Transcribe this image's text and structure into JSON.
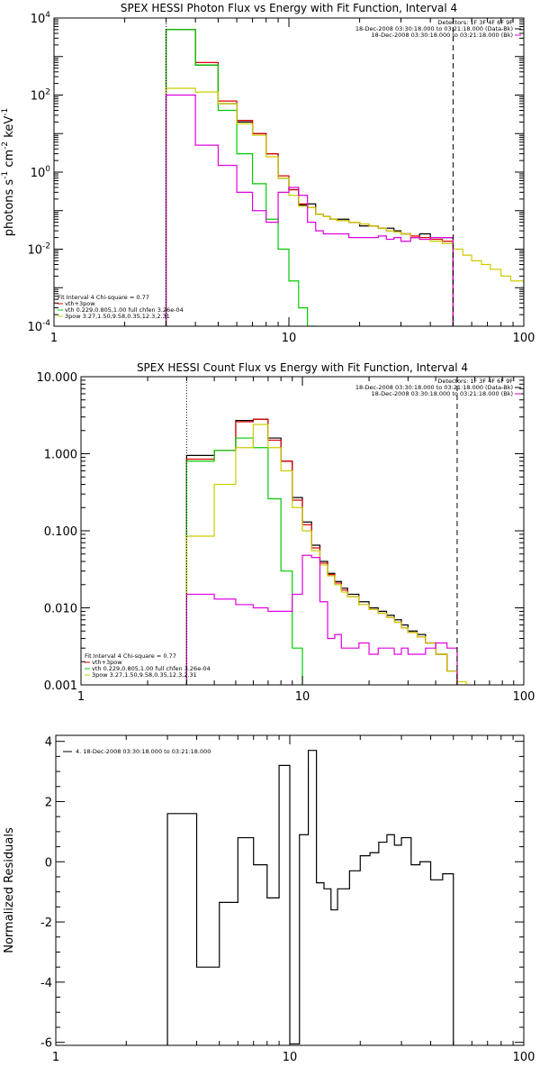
{
  "chart_data": [
    {
      "type": "line",
      "title": "SPEX HESSI Photon Flux vs Energy with Fit Function, Interval 4",
      "xlabel": "",
      "ylabel": "photons s",
      "ylabel_parts": [
        "-1",
        " cm",
        "-2",
        " keV",
        "-1"
      ],
      "xscale": "log",
      "yscale": "log",
      "xlim": [
        1,
        100
      ],
      "ylim": [
        0.0001,
        10000
      ],
      "xticks": [
        "1",
        "10",
        "100"
      ],
      "yticks": [
        {
          "base": "10",
          "exp": "4",
          "v": 10000
        },
        {
          "base": "10",
          "exp": "2",
          "v": 100
        },
        {
          "base": "10",
          "exp": "0",
          "v": 1
        },
        {
          "base": "10",
          "exp": "-2",
          "v": 0.01
        },
        {
          "base": "10",
          "exp": "-4",
          "v": 0.0001
        }
      ],
      "vlines": [
        {
          "x": 3,
          "style": "dotted",
          "color": "#000000"
        },
        {
          "x": 50,
          "style": "dashed",
          "color": "#000000"
        }
      ],
      "legend_top": [
        "Detectors: 1F 3F 4F 6F 9F",
        "18-Dec-2008 03:30:18.000 to 03:21:18.000 (Data-Bk)",
        "18-Dec-2008 03:30:18.000 to 03:21:18.000 (Bk)"
      ],
      "legend_top_colors": [
        "",
        "#000000",
        "#e000e0"
      ],
      "legend_bottom": [
        "Fit Interval  4    Chi-square = 0.77",
        "vth+3pow",
        "vth 0.229,0.805,1.00  full chfen 3.26e-04",
        "3pow  3.27,1.50,9.58,0.35,12.3,2.31"
      ],
      "legend_bottom_colors": [
        "",
        "#dd0000",
        "#00cc00",
        "#cccc00"
      ],
      "series": [
        {
          "color": "#000000",
          "edges": [
            3,
            4,
            5,
            6,
            7,
            8,
            9,
            10,
            11,
            12,
            13,
            14,
            15,
            16,
            18,
            20,
            22,
            24,
            26,
            28,
            30,
            33,
            36,
            40,
            45,
            50
          ],
          "values": [
            5000,
            600,
            60,
            20,
            10,
            3,
            0.7,
            0.35,
            0.14,
            0.15,
            0.08,
            0.07,
            0.06,
            0.06,
            0.05,
            0.04,
            0.04,
            0.035,
            0.035,
            0.03,
            0.025,
            0.02,
            0.025,
            0.02,
            0.02
          ]
        },
        {
          "color": "#dd0000",
          "edges": [
            3,
            4,
            5,
            6,
            7,
            8,
            9,
            10,
            11,
            12,
            13,
            14,
            15,
            16,
            18,
            20,
            22,
            24,
            26,
            28,
            30,
            33,
            36,
            40,
            45,
            50
          ],
          "values": [
            5000,
            700,
            70,
            22,
            10,
            3,
            0.8,
            0.35,
            0.15,
            0.12,
            0.08,
            0.07,
            0.06,
            0.055,
            0.05,
            0.045,
            0.04,
            0.035,
            0.03,
            0.028,
            0.025,
            0.022,
            0.02,
            0.018,
            0.016
          ]
        },
        {
          "color": "#00cc00",
          "edges": [
            3,
            4,
            5,
            6,
            7,
            8,
            9,
            10,
            11,
            12,
            13
          ],
          "values": [
            5000,
            600,
            40,
            3,
            0.5,
            0.06,
            0.01,
            0.0015,
            0.0003,
            0.0001
          ]
        },
        {
          "color": "#cccc00",
          "edges": [
            3,
            4,
            5,
            6,
            7,
            8,
            9,
            10,
            11,
            12,
            13,
            14,
            15,
            16,
            18,
            20,
            22,
            24,
            26,
            28,
            30,
            33,
            36,
            40,
            45,
            50,
            55,
            60,
            66,
            72,
            80,
            88,
            100
          ],
          "values": [
            150,
            120,
            60,
            18,
            9,
            2.5,
            0.7,
            0.25,
            0.13,
            0.12,
            0.08,
            0.07,
            0.06,
            0.055,
            0.05,
            0.045,
            0.04,
            0.035,
            0.03,
            0.028,
            0.025,
            0.02,
            0.018,
            0.016,
            0.014,
            0.01,
            0.007,
            0.005,
            0.004,
            0.003,
            0.002,
            0.0015
          ]
        },
        {
          "color": "#e000e0",
          "edges": [
            3,
            4,
            5,
            6,
            7,
            8,
            9,
            10,
            11,
            12,
            13,
            14,
            15,
            16,
            18,
            20,
            22,
            24,
            26,
            28,
            30,
            33,
            36,
            40,
            45,
            50
          ],
          "values": [
            100,
            5,
            1.5,
            0.3,
            0.1,
            0.05,
            0.3,
            0.4,
            0.25,
            0.05,
            0.03,
            0.025,
            0.025,
            0.025,
            0.02,
            0.02,
            0.02,
            0.022,
            0.018,
            0.02,
            0.016,
            0.02,
            0.018,
            0.02,
            0.02
          ]
        }
      ]
    },
    {
      "type": "line",
      "title": "SPEX HESSI Count Flux vs Energy with Fit Function, Interval 4",
      "xlabel": "",
      "ylabel": "",
      "xscale": "log",
      "yscale": "log",
      "xlim": [
        1,
        100
      ],
      "ylim": [
        0.001,
        10
      ],
      "xticks": [
        "1",
        "10",
        "100"
      ],
      "yticks": [
        {
          "label": "10.000",
          "v": 10
        },
        {
          "label": "1.000",
          "v": 1
        },
        {
          "label": "0.100",
          "v": 0.1
        },
        {
          "label": "0.010",
          "v": 0.01
        },
        {
          "label": "0.001",
          "v": 0.001
        }
      ],
      "vlines": [
        {
          "x": 3,
          "style": "dotted",
          "color": "#000000"
        },
        {
          "x": 50,
          "style": "dashed",
          "color": "#000000"
        }
      ],
      "legend_top": [
        "Detectors: 1F 3F 4F 6F 9F",
        "18-Dec-2008 03:30:18.000 to 03:21:18.000 (Data-Bk)",
        "18-Dec-2008 03:30:18.000 to 03:21:18.000 (Bk)"
      ],
      "legend_top_colors": [
        "",
        "#000000",
        "#e000e0"
      ],
      "legend_bottom": [
        "Fit Interval  4    Chi-square = 0.77",
        "vth+3pow",
        "vth 0.229,0.805,1.00  full chfen 3.26e-04",
        "3pow  3.27,1.50,9.58,0.35,12.3,2.31"
      ],
      "legend_bottom_colors": [
        "",
        "#dd0000",
        "#00cc00",
        "#cccc00"
      ],
      "series": [
        {
          "color": "#000000",
          "edges": [
            3,
            4,
            5,
            6,
            7,
            8,
            9,
            10,
            11,
            12,
            13,
            14,
            15,
            16,
            18,
            20,
            22,
            24,
            26,
            28,
            30,
            33,
            36,
            40,
            45,
            50
          ],
          "values": [
            0.95,
            1.1,
            2.7,
            2.8,
            1.6,
            0.8,
            0.27,
            0.13,
            0.065,
            0.04,
            0.028,
            0.022,
            0.018,
            0.015,
            0.012,
            0.01,
            0.009,
            0.008,
            0.007,
            0.006,
            0.005,
            0.0045,
            0.0035,
            0.0025,
            0.0015
          ]
        },
        {
          "color": "#dd0000",
          "edges": [
            3,
            4,
            5,
            6,
            7,
            8,
            9,
            10,
            11,
            12,
            13,
            14,
            15,
            16,
            18,
            20,
            22,
            24,
            26,
            28,
            30,
            33,
            36,
            40,
            45,
            50
          ],
          "values": [
            0.85,
            1.1,
            2.6,
            2.8,
            1.5,
            0.8,
            0.25,
            0.12,
            0.06,
            0.038,
            0.027,
            0.021,
            0.017,
            0.014,
            0.011,
            0.0095,
            0.0085,
            0.0075,
            0.0065,
            0.0055,
            0.0048,
            0.0042,
            0.0035,
            0.0025,
            0.0015
          ]
        },
        {
          "color": "#00cc00",
          "edges": [
            3,
            4,
            5,
            6,
            7,
            8,
            9,
            10
          ],
          "values": [
            0.8,
            1.1,
            1.6,
            1.2,
            0.26,
            0.03,
            0.003
          ]
        },
        {
          "color": "#cccc00",
          "edges": [
            3,
            4,
            5,
            6,
            7,
            8,
            9,
            10,
            11,
            12,
            13,
            14,
            15,
            16,
            18,
            20,
            22,
            24,
            26,
            28,
            30,
            33,
            36,
            40,
            45,
            50,
            55
          ],
          "values": [
            0.085,
            0.4,
            1.2,
            2.4,
            1.2,
            0.6,
            0.2,
            0.1,
            0.055,
            0.036,
            0.026,
            0.02,
            0.016,
            0.014,
            0.011,
            0.0095,
            0.0085,
            0.0075,
            0.0065,
            0.0055,
            0.0048,
            0.0042,
            0.0035,
            0.0025,
            0.0015,
            0.0011
          ]
        },
        {
          "color": "#e000e0",
          "edges": [
            3,
            4,
            5,
            6,
            7,
            8,
            9,
            10,
            11,
            12,
            13,
            14,
            15,
            16,
            18,
            20,
            22,
            24,
            26,
            28,
            30,
            33,
            36,
            40,
            45,
            50
          ],
          "values": [
            0.015,
            0.013,
            0.011,
            0.01,
            0.009,
            0.009,
            0.015,
            0.048,
            0.045,
            0.012,
            0.004,
            0.0045,
            0.003,
            0.003,
            0.0035,
            0.0025,
            0.003,
            0.003,
            0.0025,
            0.003,
            0.0025,
            0.0025,
            0.003,
            0.0035,
            0.003
          ]
        }
      ]
    },
    {
      "type": "line",
      "title": "",
      "xlabel": "",
      "ylabel": "Normalized Residuals",
      "xscale": "log",
      "yscale": "linear",
      "xlim": [
        1,
        100
      ],
      "ylim": [
        -6.1,
        4.2
      ],
      "xticks": [
        "1",
        "10",
        "100"
      ],
      "yticks": [
        {
          "label": "4",
          "v": 4
        },
        {
          "label": "2",
          "v": 2
        },
        {
          "label": "0",
          "v": 0
        },
        {
          "label": "-2",
          "v": -2
        },
        {
          "label": "-4",
          "v": -4
        },
        {
          "label": "-6",
          "v": -6
        }
      ],
      "legend": [
        "4. 18-Dec-2008 03:30:18.000 to 03:21:18.000"
      ],
      "series": [
        {
          "color": "#000000",
          "edges": [
            3,
            4,
            5,
            6,
            7,
            8,
            9,
            10,
            11,
            12,
            13,
            14,
            15,
            16,
            18,
            20,
            22,
            24,
            26,
            28,
            30,
            33,
            36,
            40,
            45,
            50
          ],
          "values": [
            1.6,
            -3.5,
            -1.35,
            0.8,
            -0.1,
            -1.2,
            3.2,
            -6.05,
            0.9,
            3.7,
            -0.7,
            -0.9,
            -1.6,
            -0.9,
            -0.3,
            0.2,
            0.3,
            0.65,
            0.9,
            0.55,
            0.8,
            -0.1,
            0.0,
            -0.6,
            -0.4
          ]
        }
      ]
    }
  ]
}
